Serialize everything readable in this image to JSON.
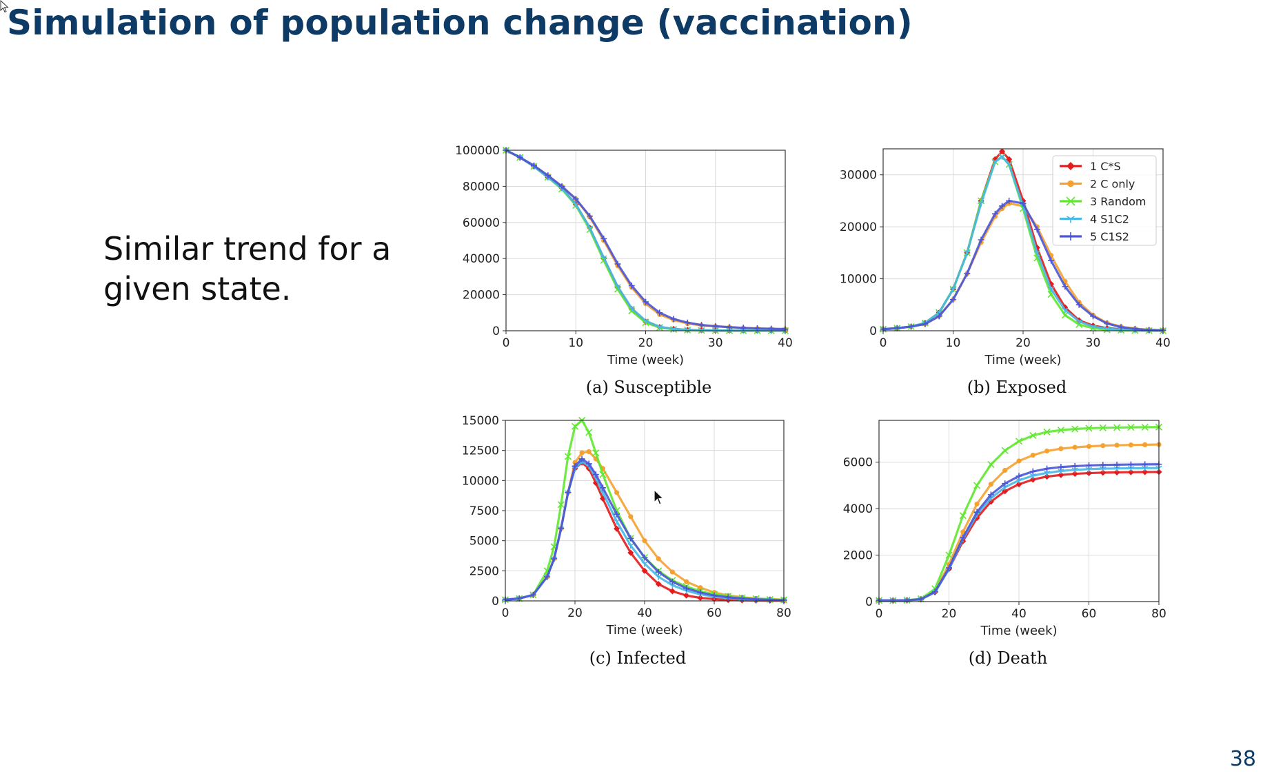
{
  "slide": {
    "title": "Simulation of population change (vaccination)",
    "body": "Similar trend for a given state.",
    "page_number": "38"
  },
  "legend": [
    {
      "label": "1 C*S",
      "color": "#e41a1c",
      "marker": "diamond"
    },
    {
      "label": "2 C only",
      "color": "#f5a130",
      "marker": "circle"
    },
    {
      "label": "3 Random",
      "color": "#5ee82e",
      "marker": "x"
    },
    {
      "label": "4 S1C2",
      "color": "#48b8e6",
      "marker": "tri"
    },
    {
      "label": "5 C1S2",
      "color": "#4b55d6",
      "marker": "plus"
    }
  ],
  "chart_data": [
    {
      "type": "line",
      "caption": "(a) Susceptible",
      "xlabel": "Time (week)",
      "ylabel": "",
      "xlim": [
        0,
        40
      ],
      "ylim": [
        0,
        100000
      ],
      "xticks": [
        "0",
        "10",
        "20",
        "30",
        "40"
      ],
      "yticks": [
        "0",
        "20000",
        "40000",
        "60000",
        "80000",
        "100000"
      ],
      "grid": true,
      "x": [
        0,
        2,
        4,
        6,
        8,
        10,
        12,
        14,
        16,
        18,
        20,
        22,
        24,
        26,
        28,
        30,
        32,
        34,
        36,
        38,
        40
      ],
      "series": [
        {
          "values": [
            100000,
            96000,
            91000,
            85000,
            79000,
            70000,
            57000,
            40000,
            24000,
            12000,
            5000,
            2000,
            1000,
            500,
            300,
            200,
            100,
            80,
            50,
            30,
            20
          ]
        },
        {
          "values": [
            100000,
            96000,
            91500,
            86000,
            80000,
            73000,
            63000,
            50000,
            36000,
            24000,
            15000,
            9000,
            6000,
            4000,
            3000,
            2500,
            2000,
            1500,
            1200,
            1000,
            900
          ]
        },
        {
          "values": [
            100000,
            96000,
            91000,
            85000,
            78500,
            69500,
            56000,
            39000,
            23000,
            11000,
            4500,
            1800,
            800,
            400,
            200,
            100,
            80,
            50,
            40,
            30,
            20
          ]
        },
        {
          "values": [
            100000,
            96000,
            91000,
            85000,
            79000,
            70000,
            57000,
            40500,
            24500,
            12500,
            5500,
            2200,
            1000,
            500,
            300,
            200,
            100,
            80,
            50,
            30,
            20
          ]
        },
        {
          "values": [
            100000,
            96000,
            91500,
            86000,
            80000,
            73000,
            63500,
            51000,
            37000,
            25000,
            16000,
            10000,
            6500,
            4500,
            3200,
            2500,
            2000,
            1600,
            1300,
            1100,
            900
          ]
        }
      ]
    },
    {
      "type": "line",
      "caption": "(b) Exposed",
      "xlabel": "Time (week)",
      "ylabel": "",
      "xlim": [
        0,
        40
      ],
      "ylim": [
        0,
        35000
      ],
      "xticks": [
        "0",
        "10",
        "20",
        "30",
        "40"
      ],
      "yticks": [
        "0",
        "10000",
        "20000",
        "30000"
      ],
      "grid": true,
      "x": [
        0,
        2,
        4,
        6,
        8,
        10,
        12,
        14,
        16,
        17,
        18,
        20,
        22,
        24,
        26,
        28,
        30,
        32,
        34,
        36,
        38,
        40
      ],
      "series": [
        {
          "values": [
            300,
            500,
            800,
            1500,
            3500,
            8000,
            15000,
            25000,
            33000,
            34500,
            33000,
            25000,
            16000,
            9000,
            4500,
            2000,
            1000,
            500,
            300,
            200,
            100,
            50
          ]
        },
        {
          "values": [
            300,
            500,
            800,
            1300,
            2800,
            6000,
            11000,
            17000,
            22000,
            23500,
            24500,
            24000,
            20000,
            14500,
            9500,
            5500,
            3000,
            1500,
            800,
            400,
            200,
            100
          ]
        },
        {
          "values": [
            300,
            500,
            800,
            1500,
            3500,
            8000,
            15000,
            25000,
            32500,
            33500,
            32000,
            23500,
            14000,
            7000,
            3000,
            1200,
            500,
            200,
            100,
            50,
            20,
            10
          ]
        },
        {
          "values": [
            300,
            500,
            800,
            1500,
            3500,
            8000,
            15000,
            24500,
            32500,
            33500,
            32000,
            24000,
            15000,
            8000,
            4000,
            1800,
            800,
            400,
            200,
            100,
            50,
            20
          ]
        },
        {
          "values": [
            300,
            500,
            800,
            1300,
            2800,
            6000,
            11000,
            17500,
            22500,
            24000,
            25000,
            24500,
            19500,
            13500,
            8500,
            5000,
            2800,
            1400,
            700,
            350,
            150,
            80
          ]
        }
      ]
    },
    {
      "type": "line",
      "caption": "(c) Infected",
      "xlabel": "Time (week)",
      "ylabel": "",
      "xlim": [
        0,
        80
      ],
      "ylim": [
        0,
        15000
      ],
      "xticks": [
        "0",
        "20",
        "40",
        "60",
        "80"
      ],
      "yticks": [
        "0",
        "2500",
        "5000",
        "7500",
        "10000",
        "12500",
        "15000"
      ],
      "grid": true,
      "x": [
        0,
        4,
        8,
        12,
        14,
        16,
        18,
        20,
        22,
        24,
        26,
        28,
        32,
        36,
        40,
        44,
        48,
        52,
        56,
        60,
        64,
        68,
        72,
        76,
        80
      ],
      "series": [
        {
          "values": [
            100,
            200,
            500,
            2000,
            3500,
            6000,
            9000,
            11000,
            11500,
            11000,
            9800,
            8500,
            6000,
            4000,
            2500,
            1400,
            800,
            450,
            250,
            150,
            80,
            50,
            30,
            20,
            10
          ]
        },
        {
          "values": [
            100,
            200,
            500,
            2000,
            3500,
            6000,
            9000,
            11500,
            12300,
            12400,
            11800,
            11000,
            9000,
            7000,
            5000,
            3500,
            2400,
            1600,
            1100,
            700,
            450,
            300,
            200,
            150,
            100
          ]
        },
        {
          "values": [
            100,
            200,
            500,
            2500,
            4500,
            8000,
            12000,
            14500,
            15000,
            14000,
            12300,
            10500,
            7500,
            5200,
            3600,
            2500,
            1700,
            1200,
            800,
            550,
            380,
            260,
            180,
            120,
            80
          ]
        },
        {
          "values": [
            100,
            200,
            500,
            2000,
            3500,
            6000,
            9000,
            11000,
            11600,
            11200,
            10200,
            9000,
            6600,
            4600,
            3100,
            2000,
            1300,
            850,
            550,
            350,
            230,
            150,
            100,
            70,
            50
          ]
        },
        {
          "values": [
            100,
            200,
            500,
            2000,
            3500,
            6000,
            9000,
            11200,
            11800,
            11400,
            10500,
            9400,
            7200,
            5200,
            3600,
            2400,
            1600,
            1050,
            700,
            450,
            300,
            200,
            130,
            90,
            60
          ]
        }
      ]
    },
    {
      "type": "line",
      "caption": "(d) Death",
      "xlabel": "Time (week)",
      "ylabel": "",
      "xlim": [
        0,
        80
      ],
      "ylim": [
        0,
        7800
      ],
      "xticks": [
        "0",
        "20",
        "40",
        "60",
        "80"
      ],
      "yticks": [
        "0",
        "2000",
        "4000",
        "6000"
      ],
      "grid": true,
      "x": [
        0,
        4,
        8,
        12,
        16,
        20,
        24,
        28,
        32,
        36,
        40,
        44,
        48,
        52,
        56,
        60,
        64,
        68,
        72,
        76,
        80
      ],
      "series": [
        {
          "values": [
            50,
            50,
            60,
            100,
            400,
            1400,
            2600,
            3600,
            4300,
            4750,
            5050,
            5250,
            5380,
            5450,
            5500,
            5530,
            5550,
            5560,
            5570,
            5575,
            5580
          ]
        },
        {
          "values": [
            50,
            50,
            60,
            100,
            450,
            1600,
            3000,
            4200,
            5050,
            5650,
            6050,
            6300,
            6480,
            6580,
            6640,
            6680,
            6710,
            6730,
            6740,
            6750,
            6760
          ]
        },
        {
          "values": [
            50,
            50,
            60,
            120,
            550,
            2000,
            3700,
            5000,
            5900,
            6500,
            6900,
            7150,
            7300,
            7380,
            7430,
            7460,
            7480,
            7490,
            7500,
            7505,
            7510
          ]
        },
        {
          "values": [
            50,
            50,
            60,
            100,
            400,
            1400,
            2700,
            3750,
            4450,
            4920,
            5220,
            5420,
            5540,
            5620,
            5670,
            5700,
            5720,
            5730,
            5740,
            5745,
            5750
          ]
        },
        {
          "values": [
            50,
            50,
            60,
            100,
            420,
            1450,
            2750,
            3850,
            4600,
            5080,
            5400,
            5600,
            5720,
            5790,
            5830,
            5860,
            5880,
            5890,
            5900,
            5905,
            5910
          ]
        }
      ]
    }
  ]
}
